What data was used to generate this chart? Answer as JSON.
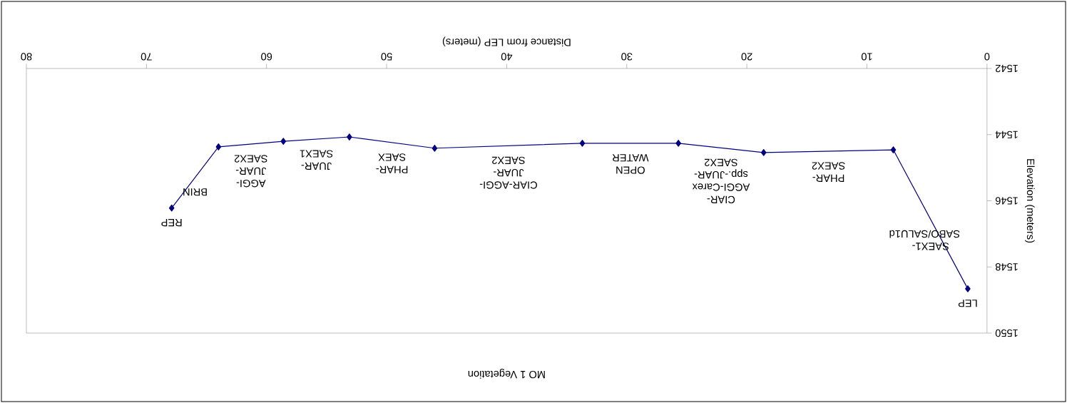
{
  "chart_data": {
    "type": "line",
    "title": "MO 1 Vegetation",
    "xlabel": "Distance from LEP (meters)",
    "ylabel": "Elevation (meters)",
    "x": [
      1.6,
      7.8,
      18.6,
      25.7,
      33.7,
      46.0,
      53.1,
      58.6,
      64.0,
      67.9
    ],
    "series": [
      {
        "color": "#000080",
        "values": [
          1548.66,
          1544.46,
          1544.54,
          1544.26,
          1544.26,
          1544.41,
          1544.07,
          1544.2,
          1544.37,
          1546.22
        ]
      }
    ],
    "xlim": [
      80,
      0
    ],
    "xticks": [
      0,
      10,
      20,
      30,
      40,
      50,
      60,
      70,
      80
    ],
    "ylim": [
      1550,
      1542
    ],
    "yticks": [
      1542,
      1544,
      1546,
      1548,
      1550
    ],
    "marker": "diamond",
    "line_style": "solid",
    "grid": false,
    "annotations": [
      "LEP",
      "SAEX1-SABO/SALU1d",
      "PHAR-SAEX2",
      "CIAR-AGGI-Carex spp.-JUAR-SAEX2",
      "OPEN WATER",
      "CIAR-AGGI-JUAR-SAEX2",
      "PHAR-SAEX",
      "JUAR-SAEX1",
      "AGGI-JUAR-SAEX2",
      "BRIN",
      "REP"
    ]
  }
}
